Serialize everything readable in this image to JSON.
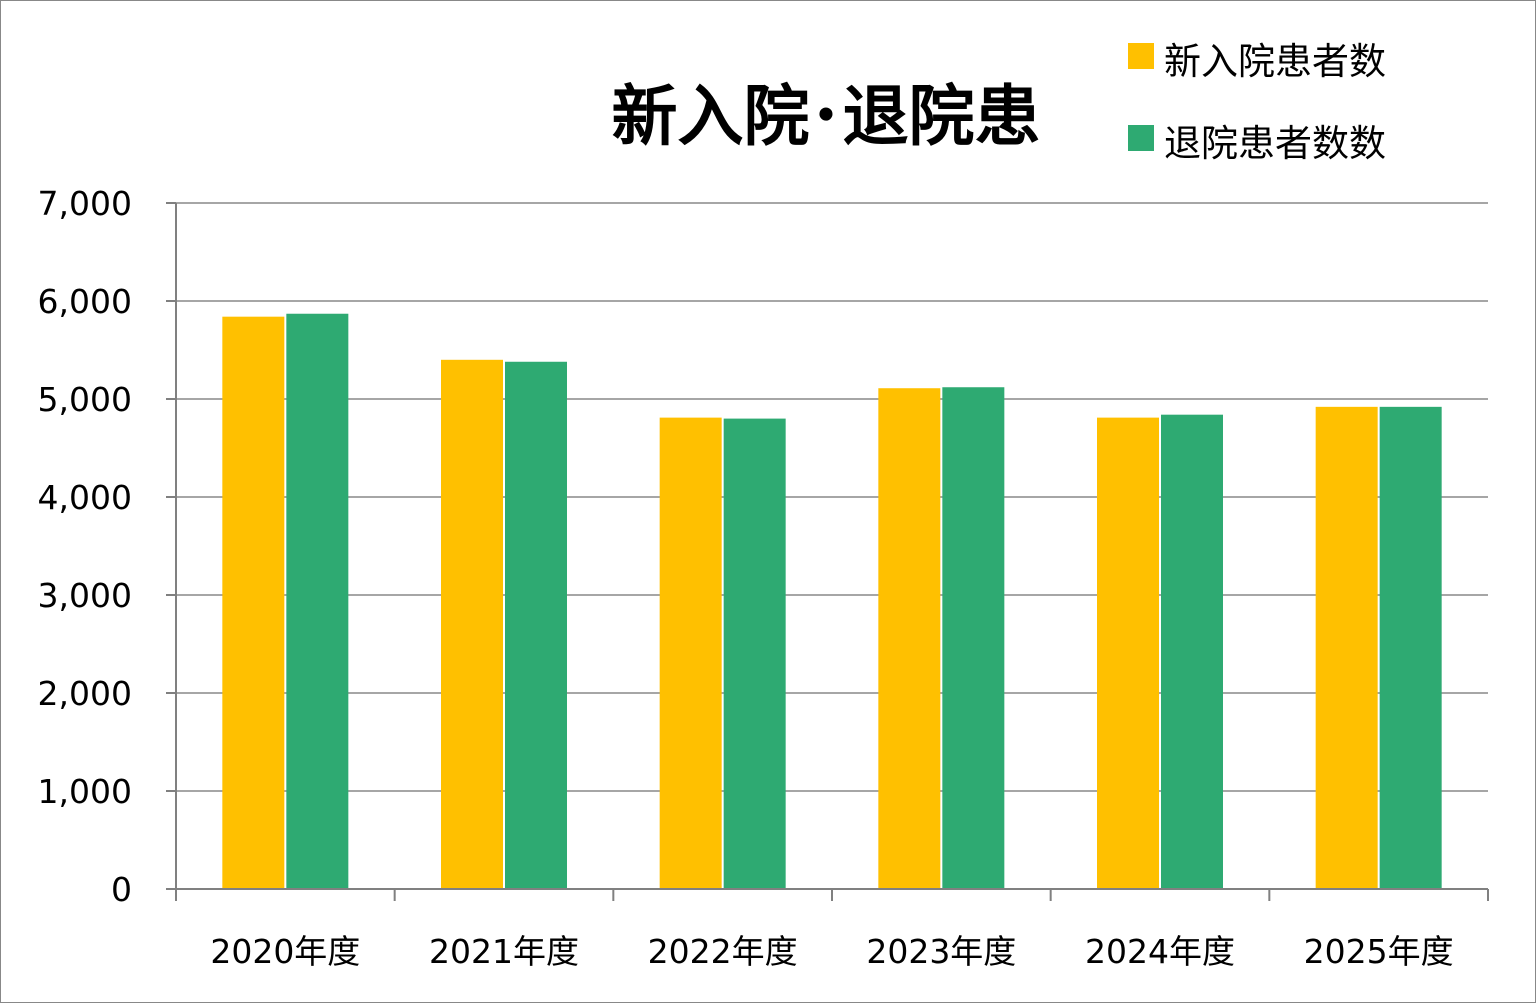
{
  "colors": {
    "series_1": "#FFC000",
    "series_2": "#2EAA72",
    "gridline": "#A6A6A6",
    "axis": "#808080"
  },
  "chart_data": {
    "type": "bar",
    "title": "新入院･退院患",
    "categories": [
      "2020年度",
      "2021年度",
      "2022年度",
      "2023年度",
      "2024年度",
      "2025年度"
    ],
    "series": [
      {
        "name": "新入院患者数",
        "values": [
          5840,
          5400,
          4810,
          5110,
          4810,
          4920
        ]
      },
      {
        "name": "退院患者数数",
        "values": [
          5870,
          5380,
          4800,
          5120,
          4840,
          4920
        ]
      }
    ],
    "ylim": [
      0,
      7000
    ],
    "yticks": [
      "0",
      "1,000",
      "2,000",
      "3,000",
      "4,000",
      "5,000",
      "6,000",
      "7,000"
    ],
    "xlabel": "",
    "ylabel": "",
    "grid": true,
    "legend_position": "top-right"
  }
}
